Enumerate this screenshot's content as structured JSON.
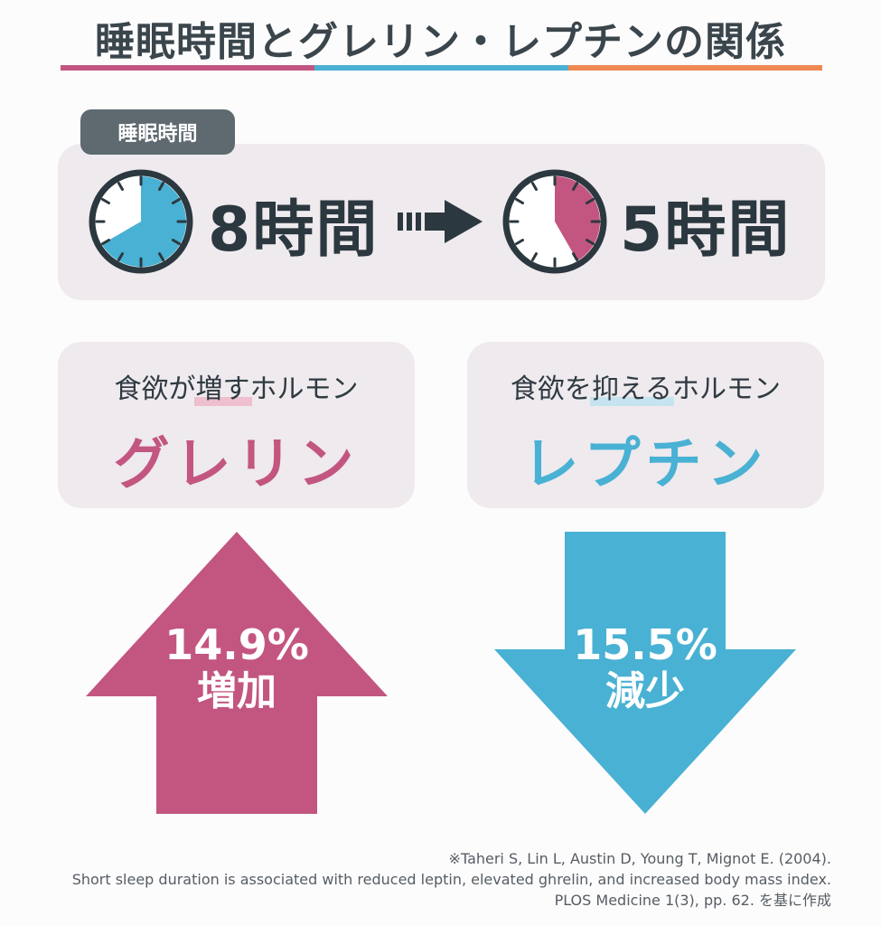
{
  "title": "睡眠時間とグレリン・レプチンの関係",
  "colors": {
    "pink": "#c35680",
    "blue": "#49b1d3",
    "orange": "#ee8954",
    "dark": "#2c383f",
    "panel": "#eeeaee",
    "tag": "#5e6970"
  },
  "sleep": {
    "tag": "睡眠時間",
    "before": {
      "hours": 8,
      "label": "8時間"
    },
    "after": {
      "hours": 5,
      "label": "5時間"
    }
  },
  "ghrelin": {
    "desc_pre": "食欲が",
    "desc_highlight": "増す",
    "desc_post": "ホルモン",
    "name": "グレリン",
    "change_value": "14.9%",
    "change_word": "増加",
    "direction": "up"
  },
  "leptin": {
    "desc_pre": "食欲を",
    "desc_highlight": "抑える",
    "desc_post": "ホルモン",
    "name": "レプチン",
    "change_value": "15.5%",
    "change_word": "減少",
    "direction": "down"
  },
  "citation": {
    "line1": "※Taheri S, Lin L, Austin D, Young T, Mignot E. (2004).",
    "line2": "Short sleep duration is associated with reduced leptin, elevated ghrelin, and increased body mass index.",
    "line3": "PLOS Medicine 1(3), pp. 62. を基に作成"
  }
}
